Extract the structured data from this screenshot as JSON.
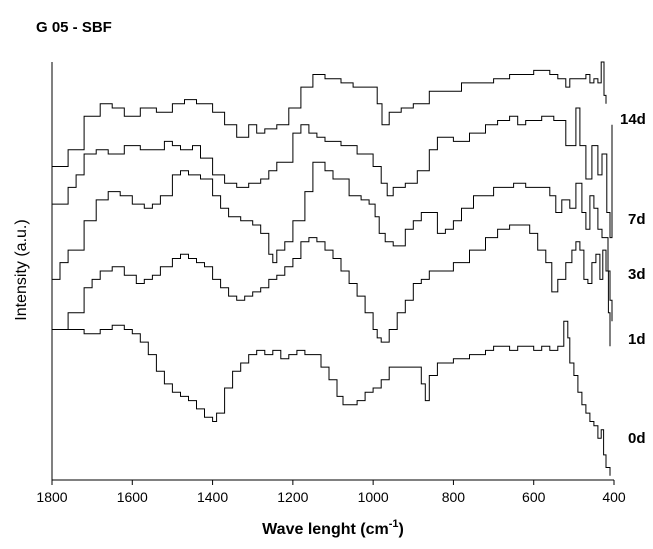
{
  "chart_data": {
    "type": "line",
    "title": "G 05 - SBF",
    "xlabel": "Wave lenght (cm",
    "xlabel_sup": "-1",
    "xlabel_suffix": ")",
    "ylabel": "Intensity (a.u.)",
    "xlim": [
      1800,
      400
    ],
    "x_reversed": true,
    "ylim": [
      0,
      100
    ],
    "y_ticks_shown": false,
    "grid": false,
    "legend": "none",
    "x_ticks": [
      1800,
      1600,
      1400,
      1200,
      1000,
      800,
      600,
      400
    ],
    "series": [
      {
        "name": "14d",
        "points": [
          [
            1800,
            75
          ],
          [
            1760,
            79
          ],
          [
            1720,
            87
          ],
          [
            1680,
            90
          ],
          [
            1650,
            89
          ],
          [
            1620,
            87
          ],
          [
            1580,
            89
          ],
          [
            1540,
            88
          ],
          [
            1500,
            90
          ],
          [
            1470,
            91
          ],
          [
            1440,
            90
          ],
          [
            1400,
            88
          ],
          [
            1370,
            85
          ],
          [
            1340,
            82
          ],
          [
            1310,
            85
          ],
          [
            1290,
            83
          ],
          [
            1270,
            84
          ],
          [
            1240,
            85
          ],
          [
            1210,
            89
          ],
          [
            1180,
            94
          ],
          [
            1150,
            97
          ],
          [
            1120,
            96
          ],
          [
            1080,
            95
          ],
          [
            1050,
            94
          ],
          [
            1000,
            94
          ],
          [
            990,
            90
          ],
          [
            978,
            85
          ],
          [
            960,
            88
          ],
          [
            930,
            89
          ],
          [
            900,
            90
          ],
          [
            860,
            93
          ],
          [
            820,
            93
          ],
          [
            780,
            95
          ],
          [
            740,
            95
          ],
          [
            700,
            96
          ],
          [
            660,
            97
          ],
          [
            640,
            97
          ],
          [
            600,
            98
          ],
          [
            580,
            98
          ],
          [
            560,
            97
          ],
          [
            540,
            96
          ],
          [
            520,
            94
          ],
          [
            510,
            96
          ],
          [
            500,
            96
          ],
          [
            485,
            96
          ],
          [
            470,
            97
          ],
          [
            460,
            95
          ],
          [
            450,
            96
          ],
          [
            440,
            95
          ],
          [
            432,
            100
          ],
          [
            425,
            92
          ],
          [
            420,
            90
          ]
        ]
      },
      {
        "name": "7d",
        "points": [
          [
            1800,
            66
          ],
          [
            1760,
            70
          ],
          [
            1740,
            73
          ],
          [
            1720,
            78
          ],
          [
            1690,
            79
          ],
          [
            1660,
            78
          ],
          [
            1620,
            80
          ],
          [
            1580,
            79
          ],
          [
            1550,
            79
          ],
          [
            1520,
            81
          ],
          [
            1500,
            80
          ],
          [
            1480,
            79
          ],
          [
            1450,
            80
          ],
          [
            1430,
            77
          ],
          [
            1400,
            73
          ],
          [
            1370,
            71
          ],
          [
            1340,
            70
          ],
          [
            1310,
            71
          ],
          [
            1280,
            72
          ],
          [
            1260,
            74
          ],
          [
            1240,
            76
          ],
          [
            1220,
            76
          ],
          [
            1200,
            83
          ],
          [
            1180,
            85
          ],
          [
            1160,
            83
          ],
          [
            1140,
            82
          ],
          [
            1120,
            81
          ],
          [
            1080,
            80
          ],
          [
            1040,
            78
          ],
          [
            1000,
            75
          ],
          [
            980,
            71
          ],
          [
            965,
            68
          ],
          [
            950,
            70
          ],
          [
            920,
            71
          ],
          [
            890,
            74
          ],
          [
            860,
            79
          ],
          [
            840,
            82
          ],
          [
            800,
            81
          ],
          [
            760,
            83
          ],
          [
            720,
            85
          ],
          [
            690,
            86
          ],
          [
            660,
            87
          ],
          [
            640,
            85
          ],
          [
            620,
            86
          ],
          [
            580,
            87
          ],
          [
            550,
            86
          ],
          [
            520,
            80
          ],
          [
            505,
            80
          ],
          [
            495,
            89
          ],
          [
            485,
            80
          ],
          [
            470,
            72
          ],
          [
            455,
            80
          ],
          [
            440,
            73
          ],
          [
            430,
            78
          ],
          [
            418,
            64
          ],
          [
            410,
            58
          ],
          [
            405,
            85
          ]
        ]
      },
      {
        "name": "3d",
        "points": [
          [
            1800,
            48
          ],
          [
            1780,
            52
          ],
          [
            1760,
            55
          ],
          [
            1720,
            62
          ],
          [
            1690,
            67
          ],
          [
            1660,
            69
          ],
          [
            1630,
            68
          ],
          [
            1600,
            66
          ],
          [
            1570,
            65
          ],
          [
            1550,
            66
          ],
          [
            1530,
            68
          ],
          [
            1500,
            73
          ],
          [
            1480,
            74
          ],
          [
            1460,
            73
          ],
          [
            1430,
            72
          ],
          [
            1400,
            68
          ],
          [
            1380,
            65
          ],
          [
            1360,
            63
          ],
          [
            1330,
            62
          ],
          [
            1300,
            61
          ],
          [
            1280,
            59
          ],
          [
            1260,
            54
          ],
          [
            1250,
            52
          ],
          [
            1240,
            55
          ],
          [
            1220,
            57
          ],
          [
            1200,
            62
          ],
          [
            1170,
            69
          ],
          [
            1150,
            76
          ],
          [
            1140,
            76
          ],
          [
            1120,
            74
          ],
          [
            1100,
            72
          ],
          [
            1060,
            68
          ],
          [
            1030,
            67
          ],
          [
            1010,
            66
          ],
          [
            995,
            63
          ],
          [
            985,
            59
          ],
          [
            970,
            57
          ],
          [
            950,
            56
          ],
          [
            920,
            60
          ],
          [
            900,
            62
          ],
          [
            880,
            64
          ],
          [
            860,
            64
          ],
          [
            840,
            59
          ],
          [
            820,
            60
          ],
          [
            800,
            62
          ],
          [
            780,
            65
          ],
          [
            750,
            68
          ],
          [
            700,
            70
          ],
          [
            650,
            71
          ],
          [
            620,
            70
          ],
          [
            590,
            70
          ],
          [
            560,
            68
          ],
          [
            545,
            64
          ],
          [
            530,
            67
          ],
          [
            510,
            65
          ],
          [
            495,
            71
          ],
          [
            480,
            64
          ],
          [
            470,
            60
          ],
          [
            460,
            68
          ],
          [
            450,
            65
          ],
          [
            440,
            60
          ],
          [
            430,
            58
          ],
          [
            420,
            58
          ],
          [
            415,
            50
          ],
          [
            410,
            43
          ],
          [
            405,
            38
          ]
        ]
      },
      {
        "name": "1d",
        "points": [
          [
            1800,
            36
          ],
          [
            1760,
            40
          ],
          [
            1720,
            46
          ],
          [
            1700,
            48
          ],
          [
            1680,
            50
          ],
          [
            1650,
            51
          ],
          [
            1620,
            49
          ],
          [
            1590,
            47
          ],
          [
            1570,
            48
          ],
          [
            1550,
            49
          ],
          [
            1530,
            51
          ],
          [
            1500,
            53
          ],
          [
            1480,
            54
          ],
          [
            1460,
            53
          ],
          [
            1440,
            52
          ],
          [
            1420,
            51
          ],
          [
            1400,
            48
          ],
          [
            1380,
            46
          ],
          [
            1360,
            44
          ],
          [
            1340,
            43
          ],
          [
            1320,
            44
          ],
          [
            1300,
            45
          ],
          [
            1280,
            46
          ],
          [
            1260,
            48
          ],
          [
            1240,
            49
          ],
          [
            1220,
            51
          ],
          [
            1200,
            53
          ],
          [
            1180,
            57
          ],
          [
            1160,
            58
          ],
          [
            1140,
            57
          ],
          [
            1120,
            55
          ],
          [
            1100,
            53
          ],
          [
            1080,
            50
          ],
          [
            1060,
            47
          ],
          [
            1040,
            44
          ],
          [
            1020,
            40
          ],
          [
            1000,
            36
          ],
          [
            990,
            34
          ],
          [
            980,
            33
          ],
          [
            960,
            36
          ],
          [
            940,
            40
          ],
          [
            920,
            43
          ],
          [
            900,
            47
          ],
          [
            880,
            48
          ],
          [
            860,
            50
          ],
          [
            840,
            50
          ],
          [
            820,
            50
          ],
          [
            800,
            52
          ],
          [
            760,
            55
          ],
          [
            720,
            58
          ],
          [
            690,
            60
          ],
          [
            660,
            61
          ],
          [
            640,
            61
          ],
          [
            610,
            59
          ],
          [
            590,
            55
          ],
          [
            570,
            52
          ],
          [
            555,
            45
          ],
          [
            540,
            48
          ],
          [
            520,
            52
          ],
          [
            505,
            55
          ],
          [
            495,
            57
          ],
          [
            485,
            55
          ],
          [
            475,
            48
          ],
          [
            465,
            47
          ],
          [
            455,
            52
          ],
          [
            445,
            54
          ],
          [
            435,
            48
          ],
          [
            428,
            55
          ],
          [
            420,
            50
          ],
          [
            414,
            40
          ],
          [
            410,
            32
          ]
        ]
      },
      {
        "name": "0d",
        "points": [
          [
            1800,
            36
          ],
          [
            1760,
            36
          ],
          [
            1720,
            35
          ],
          [
            1680,
            36
          ],
          [
            1650,
            37
          ],
          [
            1620,
            36
          ],
          [
            1600,
            35
          ],
          [
            1580,
            33
          ],
          [
            1560,
            30
          ],
          [
            1540,
            26
          ],
          [
            1520,
            23
          ],
          [
            1500,
            21
          ],
          [
            1480,
            20
          ],
          [
            1460,
            19
          ],
          [
            1440,
            17
          ],
          [
            1420,
            15
          ],
          [
            1400,
            14
          ],
          [
            1390,
            16
          ],
          [
            1370,
            22
          ],
          [
            1350,
            26
          ],
          [
            1330,
            28
          ],
          [
            1310,
            30
          ],
          [
            1290,
            31
          ],
          [
            1270,
            30
          ],
          [
            1250,
            31
          ],
          [
            1230,
            29
          ],
          [
            1210,
            30
          ],
          [
            1190,
            31
          ],
          [
            1170,
            30
          ],
          [
            1150,
            30
          ],
          [
            1130,
            27
          ],
          [
            1110,
            24
          ],
          [
            1090,
            20
          ],
          [
            1075,
            18
          ],
          [
            1060,
            18
          ],
          [
            1040,
            19
          ],
          [
            1020,
            21
          ],
          [
            1000,
            22
          ],
          [
            980,
            24
          ],
          [
            960,
            27
          ],
          [
            940,
            27
          ],
          [
            920,
            27
          ],
          [
            900,
            27
          ],
          [
            880,
            23
          ],
          [
            870,
            19
          ],
          [
            860,
            25
          ],
          [
            840,
            28
          ],
          [
            800,
            29
          ],
          [
            760,
            30
          ],
          [
            720,
            31
          ],
          [
            700,
            32
          ],
          [
            680,
            32
          ],
          [
            660,
            31
          ],
          [
            640,
            32
          ],
          [
            620,
            32
          ],
          [
            600,
            31
          ],
          [
            580,
            32
          ],
          [
            560,
            31
          ],
          [
            540,
            32
          ],
          [
            525,
            38
          ],
          [
            515,
            34
          ],
          [
            510,
            28
          ],
          [
            500,
            25
          ],
          [
            490,
            21
          ],
          [
            480,
            18
          ],
          [
            470,
            16
          ],
          [
            460,
            14
          ],
          [
            450,
            13
          ],
          [
            440,
            10
          ],
          [
            432,
            12
          ],
          [
            426,
            6
          ],
          [
            420,
            3
          ],
          [
            410,
            1
          ]
        ]
      }
    ]
  }
}
